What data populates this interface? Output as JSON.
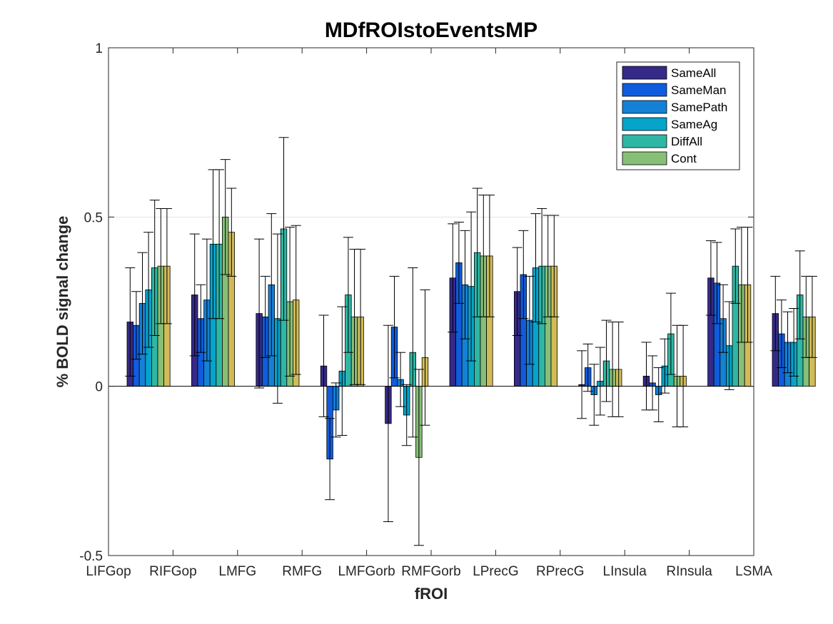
{
  "chart_data": {
    "type": "bar",
    "title": "MDfROIstoEventsMP",
    "xlabel": "fROI",
    "ylabel": "% BOLD signal change",
    "ylim": [
      -0.5,
      1
    ],
    "yticks": [
      "-0.5",
      "0",
      "0.5",
      "1"
    ],
    "ytick_values": [
      -0.5,
      0,
      0.5,
      1
    ],
    "grid": "horizontal lines at y ticks",
    "legend_position": "top-right",
    "categories": [
      "LIFGop",
      "RIFGop",
      "LMFG",
      "RMFG",
      "LMFGorb",
      "RMFGorb",
      "LPrecG",
      "RPrecG",
      "LInsula",
      "RInsula",
      "LSMA"
    ],
    "series": [
      {
        "name": "SameAll",
        "color": "#352a87",
        "values": [
          0.19,
          0.27,
          0.215,
          0.06,
          -0.11,
          0.32,
          0.28,
          0.005,
          0.03,
          0.32,
          0.215
        ],
        "err": [
          0.16,
          0.18,
          0.22,
          0.15,
          0.29,
          0.16,
          0.13,
          0.1,
          0.1,
          0.11,
          0.11
        ]
      },
      {
        "name": "SameMan",
        "color": "#0f5cdd",
        "values": [
          0.18,
          0.2,
          0.205,
          -0.215,
          0.175,
          0.365,
          0.33,
          0.055,
          0.01,
          0.305,
          0.155
        ],
        "err": [
          0.1,
          0.1,
          0.12,
          0.12,
          0.15,
          0.12,
          0.13,
          0.07,
          0.08,
          0.12,
          0.1
        ]
      },
      {
        "name": "SamePath",
        "color": "#1481d6",
        "values": [
          0.245,
          0.255,
          0.3,
          -0.07,
          0.02,
          0.3,
          0.195,
          -0.025,
          -0.025,
          0.2,
          0.13
        ],
        "err": [
          0.15,
          0.18,
          0.21,
          0.08,
          0.08,
          0.16,
          0.13,
          0.09,
          0.08,
          0.1,
          0.09
        ]
      },
      {
        "name": "SameAg",
        "color": "#06a4ca",
        "values": [
          0.285,
          0.42,
          0.2,
          0.045,
          -0.085,
          0.295,
          0.35,
          0.015,
          0.06,
          0.12,
          0.13
        ],
        "err": [
          0.17,
          0.22,
          0.25,
          0.19,
          0.09,
          0.22,
          0.16,
          0.1,
          0.08,
          0.13,
          0.1
        ]
      },
      {
        "name": "DiffAll",
        "color": "#2eb7a4",
        "values": [
          0.35,
          0.42,
          0.465,
          0.27,
          0.1,
          0.395,
          0.355,
          0.075,
          0.155,
          0.355,
          0.27
        ],
        "err": [
          0.2,
          0.22,
          0.27,
          0.17,
          0.25,
          0.19,
          0.17,
          0.12,
          0.12,
          0.11,
          0.13
        ]
      },
      {
        "name": "Cont",
        "color": "#87bf77",
        "values": [
          0.355,
          0.5,
          0.25,
          0.205,
          -0.21,
          0.385,
          0.355,
          0.05,
          0.03,
          0.3,
          0.205
        ],
        "err": [
          0.17,
          0.17,
          0.22,
          0.2,
          0.26,
          0.18,
          0.15,
          0.14,
          0.15,
          0.17,
          0.12
        ]
      },
      {
        "name": "",
        "color": "#d1bb59",
        "values": [
          0.355,
          0.455,
          0.255,
          0.205,
          0.085,
          0.385,
          0.355,
          0.05,
          0.03,
          0.3,
          0.205
        ],
        "err": [
          0.17,
          0.13,
          0.22,
          0.2,
          0.2,
          0.18,
          0.15,
          0.14,
          0.15,
          0.17,
          0.12
        ]
      }
    ]
  }
}
